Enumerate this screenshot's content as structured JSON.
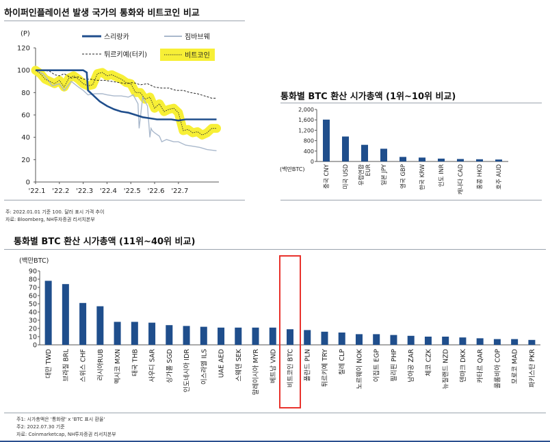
{
  "top_left": {
    "title": "하이퍼인플레이션 발생 국가의 통화와 비트코인 비교",
    "unit": "(P)",
    "note1": "주: 2022.01.01 기준 100. 달러 표시 가격 추이",
    "note2": "자료: Bloomberg, NH투자증권 리서치본부"
  },
  "top_right": {
    "title": "통화별 BTC 환산 시가총액 (1위~10위 비교)",
    "unit": "(백만BTC)"
  },
  "bottom": {
    "title": "통화별 BTC 환산 시가총액 (11위~40위 비교)",
    "unit": "(백만BTC)",
    "note1": "주1: 시가총액은 '통화량' x 'BTC 표시 환율'",
    "note2": "주2: 2022.07.30 기준",
    "note3": "자료: Coinmarketcap, NH투자증권 리서치본부"
  },
  "chart_data": [
    {
      "type": "line",
      "title": "하이퍼인플레이션 발생 국가의 통화와 비트코인 비교",
      "ylabel": "(P)",
      "ylim": [
        0,
        120
      ],
      "yticks": [
        0,
        20,
        40,
        60,
        80,
        100,
        120
      ],
      "xlim": [
        0,
        7.7
      ],
      "xticks": [
        0,
        1,
        2,
        3,
        4,
        5,
        6
      ],
      "xticklabels": [
        "'22.1",
        "'22.2",
        "'22.3",
        "'22.4",
        "'22.5",
        "'22.6",
        "'22.7"
      ],
      "series": [
        {
          "name": "스리랑카",
          "color": "#1f4e8c",
          "style": "solid-thick",
          "x": [
            0,
            2.0,
            2.15,
            2.2,
            2.7,
            3.0,
            3.3,
            3.6,
            3.9,
            4.2,
            4.5,
            4.8,
            5.1,
            5.4,
            5.7,
            6.0,
            6.3,
            6.6,
            6.9,
            7.2,
            7.6
          ],
          "y": [
            100,
            100,
            98,
            82,
            72,
            68,
            65,
            63,
            62,
            60,
            58,
            57,
            56,
            56,
            56,
            55,
            56,
            56,
            56,
            56,
            56
          ]
        },
        {
          "name": "짐바브웨",
          "color": "#a9b8cc",
          "style": "solid",
          "x": [
            0,
            0.3,
            0.5,
            0.7,
            1.0,
            1.2,
            1.5,
            1.8,
            2.0,
            2.2,
            2.5,
            2.8,
            3.0,
            3.3,
            3.6,
            3.9,
            4.1,
            4.3,
            4.35,
            4.5,
            4.7,
            4.8,
            4.85,
            4.9,
            5.0,
            5.2,
            5.3,
            5.5,
            5.8,
            6.0,
            6.3,
            6.6,
            6.9,
            7.2,
            7.6
          ],
          "y": [
            100,
            97,
            92,
            86,
            88,
            82,
            90,
            85,
            82,
            78,
            79,
            79,
            78,
            77,
            77,
            76,
            78,
            70,
            48,
            76,
            68,
            40,
            48,
            46,
            44,
            41,
            36,
            38,
            36,
            36,
            33,
            32,
            31,
            29,
            28
          ]
        },
        {
          "name": "튀르키예(터키)",
          "color": "#222222",
          "style": "dashed",
          "x": [
            0,
            0.3,
            0.6,
            0.8,
            1.0,
            1.2,
            1.5,
            1.8,
            2.0,
            2.3,
            2.6,
            2.9,
            3.2,
            3.5,
            3.8,
            4.1,
            4.4,
            4.7,
            5.0,
            5.3,
            5.6,
            5.9,
            6.2,
            6.5,
            6.8,
            7.1,
            7.4,
            7.6
          ],
          "y": [
            100,
            100,
            99,
            96,
            95,
            97,
            93,
            94,
            92,
            92,
            91,
            91,
            90,
            89,
            88,
            89,
            87,
            88,
            85,
            84,
            84,
            82,
            82,
            80,
            79,
            77,
            75,
            75
          ]
        },
        {
          "name": "비트코인",
          "color": "#333333",
          "style": "dotted-highlight",
          "highlight": "#f7ef36",
          "x": [
            0,
            0.2,
            0.4,
            0.6,
            0.8,
            1.0,
            1.2,
            1.4,
            1.6,
            1.8,
            2.0,
            2.2,
            2.4,
            2.6,
            2.8,
            3.0,
            3.2,
            3.4,
            3.6,
            3.8,
            4.0,
            4.2,
            4.4,
            4.6,
            4.8,
            5.0,
            5.2,
            5.4,
            5.6,
            5.8,
            6.0,
            6.2,
            6.4,
            6.6,
            6.8,
            7.0,
            7.2,
            7.4,
            7.6
          ],
          "y": [
            100,
            97,
            92,
            90,
            88,
            91,
            85,
            93,
            95,
            92,
            88,
            86,
            87,
            97,
            98,
            95,
            96,
            94,
            92,
            89,
            88,
            80,
            80,
            74,
            76,
            66,
            70,
            63,
            65,
            66,
            62,
            46,
            47,
            44,
            45,
            42,
            44,
            48,
            48
          ]
        }
      ]
    },
    {
      "type": "bar",
      "title": "통화별 BTC 환산 시가총액 (1위~10위 비교)",
      "ylabel": "(백만BTC)",
      "ylim": [
        0,
        2000
      ],
      "yticks": [
        0,
        400,
        800,
        1200,
        1600,
        2000
      ],
      "yticklabels": [
        "0",
        "400",
        "800",
        "1,200",
        "1,600",
        "2,000"
      ],
      "categories": [
        "중국 CNY",
        "미국 USD",
        "유럽연합 EUR",
        "일본 JPY",
        "영국 GBP",
        "한국 KRW",
        "인도 INR",
        "캐나다 CAD",
        "홍콩 HKD",
        "호주 AUD"
      ],
      "values": [
        1610,
        960,
        640,
        490,
        175,
        150,
        110,
        95,
        85,
        75
      ],
      "color": "#1f4e8c"
    },
    {
      "type": "bar",
      "title": "통화별 BTC 환산 시가총액 (11위~40위 비교)",
      "ylabel": "(백만BTC)",
      "ylim": [
        0,
        90
      ],
      "yticks": [
        0,
        10,
        20,
        30,
        40,
        50,
        60,
        70,
        80,
        90
      ],
      "categories": [
        "대만 TWD",
        "브라질 BRL",
        "스위스 CHF",
        "러시아RUB",
        "멕시코 MXN",
        "태국 THB",
        "사우디 SAR",
        "싱가폴 SGD",
        "인도네시아 IDR",
        "이스라엘 ILS",
        "UAE AED",
        "스웨덴 SEK",
        "말레이시아 MYR",
        "베트남 VND",
        "비트코인 BTC",
        "폴란드 PLN",
        "튀르키예 TRY",
        "칠레 CLP",
        "노르웨이 NOK",
        "이집트 EGP",
        "필리핀 PHP",
        "남아공 ZAR",
        "체코 CZK",
        "뉴질랜드 NZD",
        "덴마크 DKK",
        "카타르 QAR",
        "콜롬비아 COP",
        "모로코 MAD",
        "파키스탄 PKR"
      ],
      "values": [
        78,
        74,
        51,
        47,
        28,
        28,
        27,
        24,
        23,
        22,
        21,
        21,
        21,
        21,
        19,
        18,
        16,
        15,
        13,
        13,
        12,
        11,
        10,
        10,
        9,
        8,
        7,
        7,
        6
      ],
      "highlight_category": "비트코인 BTC",
      "highlight_color": "#e8312b",
      "color": "#1f4e8c"
    }
  ]
}
